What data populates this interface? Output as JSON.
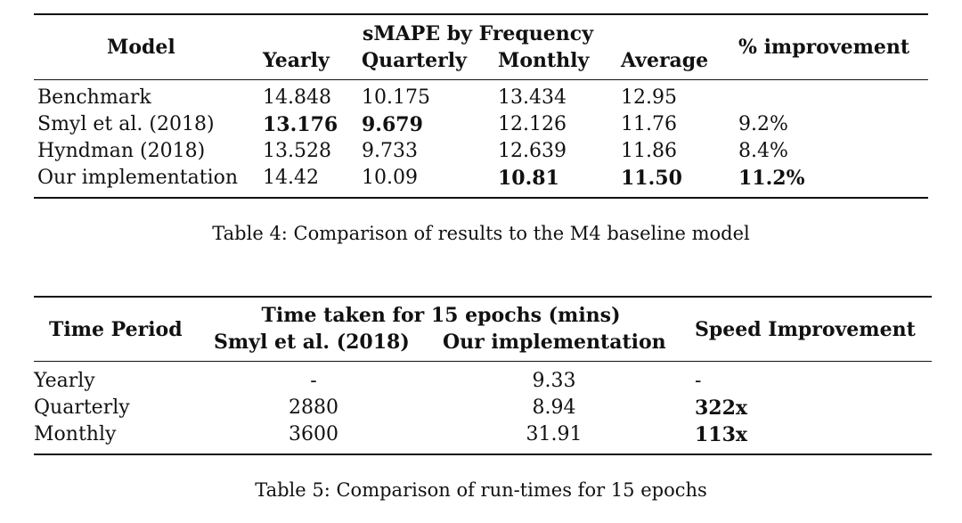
{
  "table4": {
    "header": {
      "model": "Model",
      "group": "sMAPE by Frequency",
      "yearly": "Yearly",
      "quarterly": "Quarterly",
      "monthly": "Monthly",
      "average": "Average",
      "improvement": "% improvement"
    },
    "rows": [
      {
        "model": "Benchmark",
        "yearly": "14.848",
        "quarterly": "10.175",
        "monthly": "13.434",
        "average": "12.95",
        "improvement": ""
      },
      {
        "model": "Smyl et al. (2018)",
        "yearly": "13.176",
        "quarterly": "9.679",
        "monthly": "12.126",
        "average": "11.76",
        "improvement": "9.2%"
      },
      {
        "model": "Hyndman (2018)",
        "yearly": "13.528",
        "quarterly": "9.733",
        "monthly": "12.639",
        "average": "11.86",
        "improvement": "8.4%"
      },
      {
        "model": "Our implementation",
        "yearly": "14.42",
        "quarterly": "10.09",
        "monthly": "10.81",
        "average": "11.50",
        "improvement": "11.2%"
      }
    ],
    "caption": "Table 4: Comparison of results to the M4 baseline model"
  },
  "table5": {
    "header": {
      "period": "Time Period",
      "group": "Time taken for 15 epochs (mins)",
      "smyl": "Smyl et al. (2018)",
      "ours": "Our implementation",
      "speed": "Speed Improvement"
    },
    "rows": [
      {
        "period": "Yearly",
        "smyl": "-",
        "ours": "9.33",
        "speed": "-"
      },
      {
        "period": "Quarterly",
        "smyl": "2880",
        "ours": "8.94",
        "speed": "322x"
      },
      {
        "period": "Monthly",
        "smyl": "3600",
        "ours": "31.91",
        "speed": "113x"
      }
    ],
    "caption": "Table 5: Comparison of run-times for 15 epochs"
  }
}
